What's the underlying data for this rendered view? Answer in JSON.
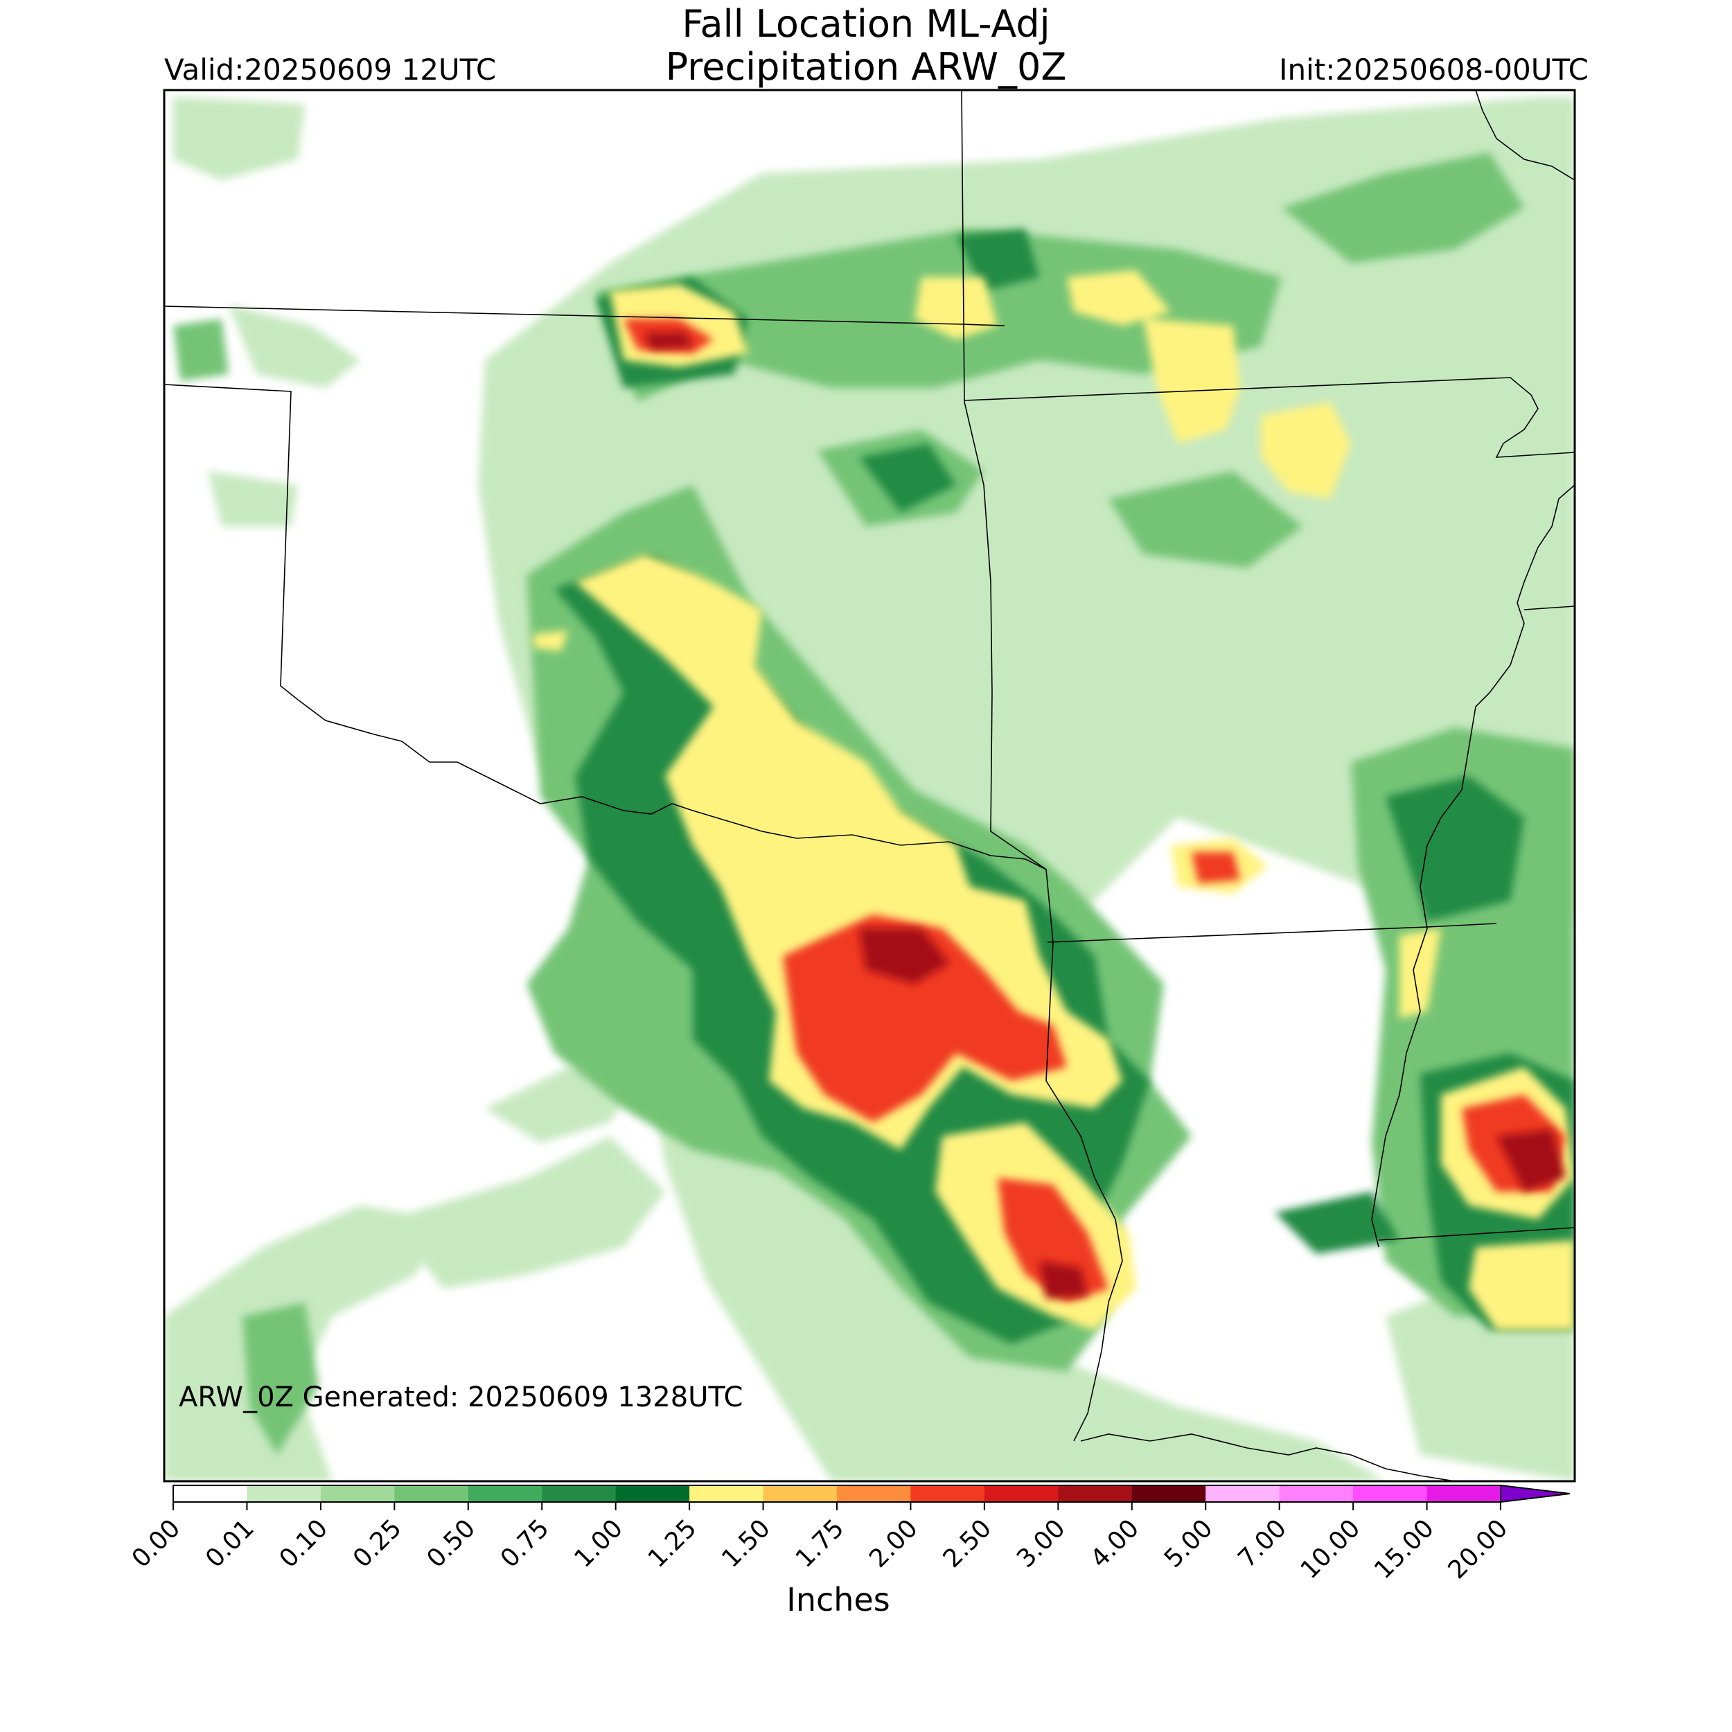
{
  "header": {
    "title_line1": "Fall Location ML-Adj",
    "title_line2": "Precipitation ARW_0Z",
    "valid": "Valid:20250609 12UTC",
    "init": "Init:20250608-00UTC"
  },
  "map": {
    "generated_note": "ARW_0Z Generated: 20250609 1328UTC"
  },
  "colorbar": {
    "label": "Inches",
    "extend": "max",
    "ticks": [
      "0.00",
      "0.01",
      "0.10",
      "0.25",
      "0.50",
      "0.75",
      "1.00",
      "1.25",
      "1.50",
      "1.75",
      "2.00",
      "2.50",
      "3.00",
      "4.00",
      "5.00",
      "7.00",
      "10.00",
      "15.00",
      "20.00"
    ],
    "colors": [
      "#ffffff",
      "#c7e9c0",
      "#a1d99b",
      "#74c476",
      "#41ab5d",
      "#238b45",
      "#006d2c",
      "#fff380",
      "#fec44f",
      "#fd8d3c",
      "#f03b20",
      "#d7191c",
      "#a50f15",
      "#67000d",
      "#ffb3ff",
      "#ff80ff",
      "#ff4dff",
      "#e61ae6",
      "#b300e6",
      "#7f00cc"
    ]
  }
}
